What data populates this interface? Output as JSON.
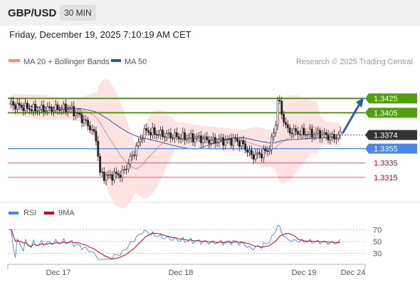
{
  "header": {
    "symbol": "GBP/USD",
    "timeframe": "30 MIN"
  },
  "timestamp": "Friday, December 19, 2025 7:10:19 AM CET",
  "legend": {
    "ma20": "MA 20 + Bollinger Bands",
    "ma50": "MA 50",
    "credit": "Research © 2025 Trading Central"
  },
  "rsi_legend": {
    "rsi": "RSI",
    "ma9": "9MA"
  },
  "colors": {
    "green": "#4ea00c",
    "blue": "#4a86e8",
    "red": "#d0021b",
    "dark": "#333333",
    "ma20": "#f28b82",
    "ma50": "#2e5a9c",
    "band": "#ffd7d7",
    "arrow": "#2e5fa8"
  },
  "chart_data": {
    "type": "candlestick",
    "y_range": [
      1.3294,
      1.3451
    ],
    "levels": [
      {
        "label": "1.3425",
        "value": 1.3425,
        "style": "green"
      },
      {
        "label": "1.3405",
        "value": 1.3405,
        "style": "green"
      },
      {
        "label": "1.3374",
        "value": 1.3374,
        "style": "current"
      },
      {
        "label": "1.3355",
        "value": 1.3355,
        "style": "blue"
      },
      {
        "label": "1.3335",
        "value": 1.3335,
        "style": "red"
      },
      {
        "label": "1.3315",
        "value": 1.3315,
        "style": "red"
      }
    ],
    "x_labels": [
      "Dec 17",
      "Dec 18",
      "Dec 19",
      "Dec 24"
    ],
    "rsi": {
      "y_range": [
        15,
        85
      ],
      "ticks": [
        "70",
        "50",
        "30"
      ]
    }
  }
}
